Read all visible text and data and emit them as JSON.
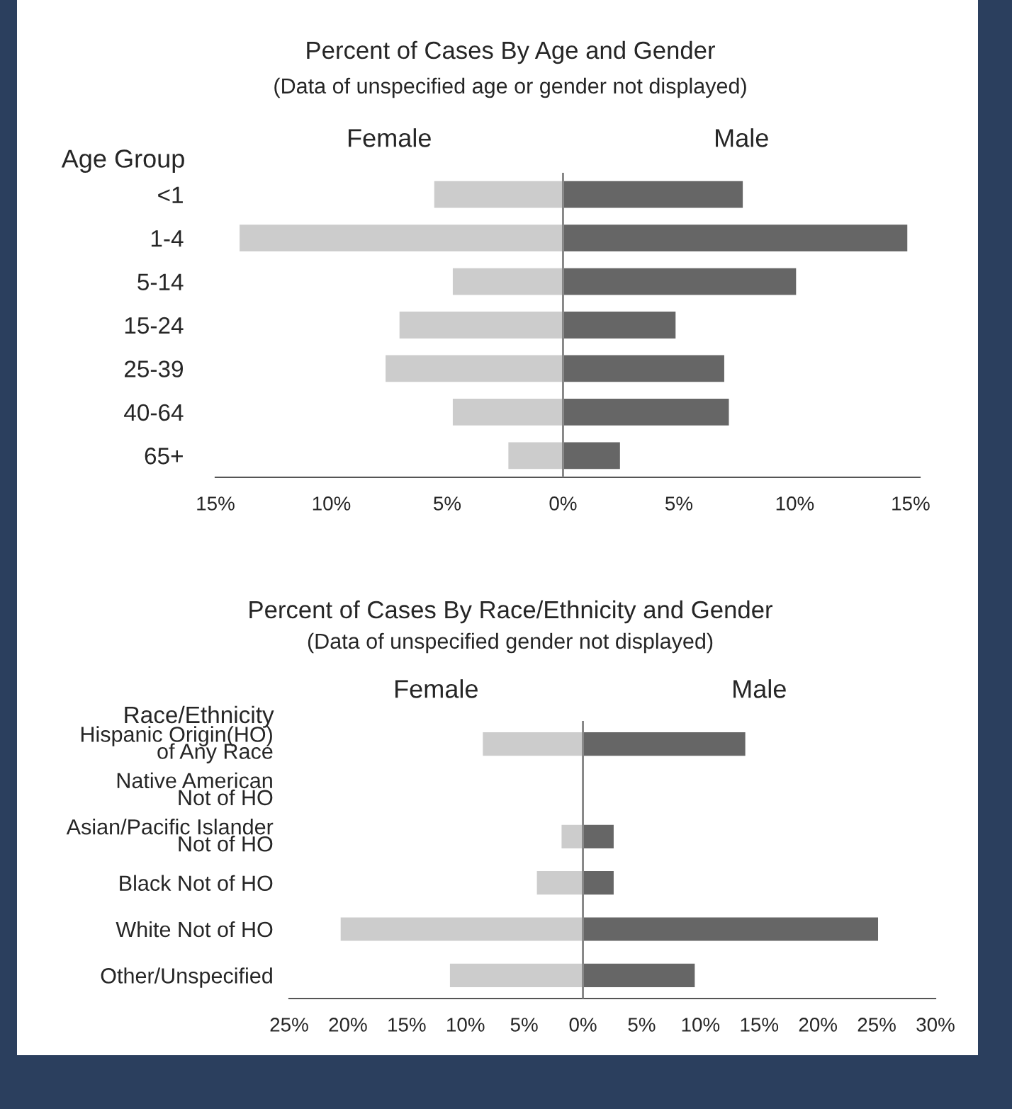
{
  "chart_data": [
    {
      "type": "bar",
      "orientation": "horizontal",
      "title": "Percent of Cases By Age and Gender",
      "subtitle": "(Data of unspecified age or gender not displayed)",
      "ylabel": "Age Group",
      "categories": [
        "<1",
        "1-4",
        "5-14",
        "15-24",
        "25-39",
        "40-64",
        "65+"
      ],
      "series": [
        {
          "name": "Female",
          "color": "#cccccc",
          "values": [
            -5.6,
            -14.0,
            -4.8,
            -7.1,
            -7.7,
            -4.8,
            -2.4
          ]
        },
        {
          "name": "Male",
          "color": "#666666",
          "values": [
            7.8,
            14.9,
            10.1,
            4.9,
            7.0,
            7.2,
            2.5
          ]
        }
      ],
      "xlim": [
        -15,
        15.4
      ],
      "xticks": [
        {
          "value": -15,
          "label": "15%"
        },
        {
          "value": -10,
          "label": "10%"
        },
        {
          "value": -5,
          "label": "5%"
        },
        {
          "value": 0,
          "label": "0%"
        },
        {
          "value": 5,
          "label": "5%"
        },
        {
          "value": 10,
          "label": "10%"
        },
        {
          "value": 15,
          "label": "15%"
        }
      ],
      "ref_lines": [
        {
          "axis": "x",
          "value": 0,
          "color": "#808080"
        }
      ],
      "stacked": true,
      "legend": false,
      "grid": false
    },
    {
      "type": "bar",
      "orientation": "horizontal",
      "title": "Percent of Cases By Race/Ethnicity and Gender",
      "subtitle": "(Data of unspecified gender not displayed)",
      "ylabel": "Race/Ethnicity",
      "categories": [
        "Hispanic Origin(HO)\nof Any Race",
        "Native American\nNot of HO",
        "Asian/Pacific Islander\nNot of HO",
        "Black Not of HO",
        "White Not of HO",
        "Other/Unspecified"
      ],
      "series": [
        {
          "name": "Female",
          "color": "#cccccc",
          "values": [
            -8.6,
            null,
            -1.9,
            -4.0,
            -20.7,
            -11.4
          ]
        },
        {
          "name": "Male",
          "color": "#666666",
          "values": [
            13.9,
            null,
            2.7,
            2.7,
            25.2,
            9.6
          ]
        }
      ],
      "xlim": [
        -25,
        30
      ],
      "xticks": [
        {
          "value": -25,
          "label": "25%"
        },
        {
          "value": -20,
          "label": "20%"
        },
        {
          "value": -15,
          "label": "15%"
        },
        {
          "value": -10,
          "label": "10%"
        },
        {
          "value": -5,
          "label": "5%"
        },
        {
          "value": 0,
          "label": "0%"
        },
        {
          "value": 5,
          "label": "5%"
        },
        {
          "value": 10,
          "label": "10%"
        },
        {
          "value": 15,
          "label": "15%"
        },
        {
          "value": 20,
          "label": "20%"
        },
        {
          "value": 25,
          "label": "25%"
        },
        {
          "value": 30,
          "label": "30%"
        }
      ],
      "ref_lines": [
        {
          "axis": "x",
          "value": 0,
          "color": "#808080"
        }
      ],
      "stacked": true,
      "legend": false,
      "grid": false
    }
  ]
}
